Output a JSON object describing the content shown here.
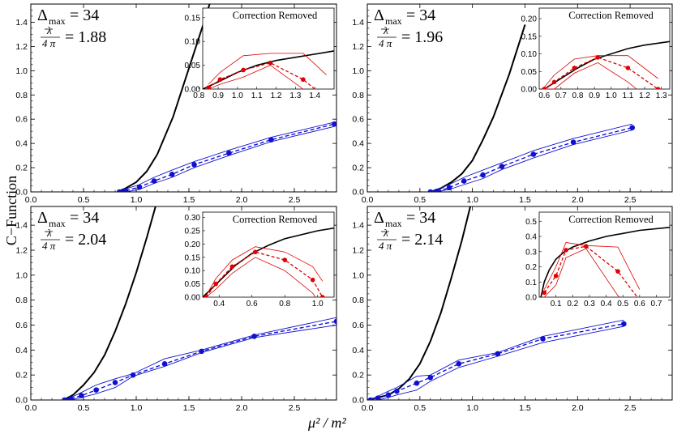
{
  "figure": {
    "ylabel": "C−Function",
    "xlabel": "μ² / m²",
    "colors": {
      "main": "#1010d0",
      "exact": "#000000",
      "inset": "#e00000"
    }
  },
  "chart_data": [
    {
      "type": "line",
      "delta_label": "Δmax = 34",
      "lambda_text": "= 1.88",
      "xlim": [
        0,
        2.9
      ],
      "ylim": [
        0,
        1.55
      ],
      "xticks": [
        "0.0",
        "0.5",
        "1.0",
        "1.5",
        "2.0",
        "2.5"
      ],
      "yticks": [
        "0.0",
        "0.2",
        "0.4",
        "0.6",
        "0.8",
        "1.0",
        "1.2",
        "1.4"
      ],
      "exact_curve": {
        "x": [
          0.82,
          0.9,
          1.0,
          1.1,
          1.2,
          1.35,
          1.5,
          1.65,
          1.75
        ],
        "y": [
          0.0,
          0.03,
          0.08,
          0.17,
          0.31,
          0.62,
          1.02,
          1.42,
          1.7
        ]
      },
      "main_points": {
        "x": [
          0.84,
          0.9,
          1.03,
          1.17,
          1.34,
          1.55,
          1.88,
          2.28,
          2.88
        ],
        "y": [
          0.0,
          0.01,
          0.04,
          0.09,
          0.145,
          0.225,
          0.32,
          0.43,
          0.56
        ]
      },
      "main_band": {
        "upper": [
          0.0,
          0.025,
          0.06,
          0.12,
          0.18,
          0.25,
          0.345,
          0.45,
          0.575
        ],
        "lower": [
          0.0,
          0.0,
          0.02,
          0.07,
          0.12,
          0.2,
          0.3,
          0.415,
          0.54
        ]
      },
      "inset": {
        "title": "Correction Removed",
        "xlim": [
          0.82,
          1.5
        ],
        "ylim": [
          0,
          0.17
        ],
        "xticks": [
          "0.8",
          "0.9",
          "1.0",
          "1.1",
          "1.2",
          "1.3",
          "1.4"
        ],
        "yticks": [
          "0.00",
          "0.05",
          "0.10",
          "0.15"
        ],
        "points": {
          "x": [
            0.85,
            0.91,
            1.03,
            1.17,
            1.34,
            1.46
          ],
          "y": [
            0.003,
            0.02,
            0.04,
            0.055,
            0.02,
            -0.02
          ]
        },
        "band_upper": [
          0.01,
          0.035,
          0.07,
          0.075,
          0.075,
          0.03
        ],
        "band_lower": [
          0.0,
          0.01,
          0.025,
          0.05,
          0.0,
          -0.05
        ],
        "exact": {
          "x": [
            0.82,
            0.9,
            1.0,
            1.1,
            1.2,
            1.35,
            1.5
          ],
          "y": [
            0.0,
            0.015,
            0.035,
            0.05,
            0.06,
            0.07,
            0.08
          ]
        }
      }
    },
    {
      "type": "line",
      "delta_label": "Δmax = 34",
      "lambda_text": "= 1.96",
      "xlim": [
        0,
        2.9
      ],
      "ylim": [
        0,
        1.55
      ],
      "xticks": [
        "0.0",
        "0.5",
        "1.0",
        "1.5",
        "2.0",
        "2.5"
      ],
      "yticks": [
        "0.0",
        "0.2",
        "0.4",
        "0.6",
        "0.8",
        "1.0",
        "1.2",
        "1.4"
      ],
      "exact_curve": {
        "x": [
          0.6,
          0.7,
          0.8,
          0.9,
          1.0,
          1.1,
          1.2,
          1.35,
          1.5
        ],
        "y": [
          0.0,
          0.03,
          0.08,
          0.15,
          0.26,
          0.43,
          0.62,
          0.97,
          1.38
        ]
      },
      "main_points": {
        "x": [
          0.6,
          0.66,
          0.78,
          0.92,
          1.1,
          1.28,
          1.58,
          1.96,
          2.52
        ],
        "y": [
          0.0,
          0.005,
          0.035,
          0.09,
          0.14,
          0.21,
          0.31,
          0.41,
          0.53
        ]
      },
      "main_band": {
        "upper": [
          0.0,
          0.02,
          0.06,
          0.12,
          0.18,
          0.24,
          0.34,
          0.44,
          0.56
        ],
        "lower": [
          0.0,
          0.0,
          0.02,
          0.06,
          0.11,
          0.185,
          0.28,
          0.39,
          0.51
        ]
      },
      "inset": {
        "title": "Correction Removed",
        "xlim": [
          0.57,
          1.35
        ],
        "ylim": [
          0,
          0.23
        ],
        "xticks": [
          "0.6",
          "0.7",
          "0.8",
          "0.9",
          "1.0",
          "1.1",
          "1.2",
          "1.3"
        ],
        "yticks": [
          "0.00",
          "0.05",
          "0.10",
          "0.15",
          "0.20"
        ],
        "points": {
          "x": [
            0.6,
            0.66,
            0.78,
            0.92,
            1.1,
            1.28
          ],
          "y": [
            0.0,
            0.02,
            0.06,
            0.09,
            0.06,
            0.0
          ]
        },
        "band_upper": [
          0.005,
          0.04,
          0.085,
          0.095,
          0.095,
          0.03
        ],
        "band_lower": [
          0.0,
          0.0,
          0.045,
          0.075,
          0.02,
          -0.05
        ],
        "exact": {
          "x": [
            0.6,
            0.7,
            0.8,
            0.9,
            1.0,
            1.1,
            1.2,
            1.35
          ],
          "y": [
            0.0,
            0.03,
            0.06,
            0.085,
            0.1,
            0.115,
            0.125,
            0.135
          ]
        }
      }
    },
    {
      "type": "line",
      "delta_label": "Δmax = 34",
      "lambda_text": "= 2.04",
      "xlim": [
        0,
        2.9
      ],
      "ylim": [
        0,
        1.55
      ],
      "xticks": [
        "0.0",
        "0.5",
        "1.0",
        "1.5",
        "2.0",
        "2.5"
      ],
      "yticks": [
        "0.0",
        "0.2",
        "0.4",
        "0.6",
        "0.8",
        "1.0",
        "1.2",
        "1.4"
      ],
      "exact_curve": {
        "x": [
          0.31,
          0.4,
          0.5,
          0.6,
          0.7,
          0.8,
          0.9,
          1.0,
          1.1,
          1.2
        ],
        "y": [
          0.0,
          0.04,
          0.12,
          0.22,
          0.36,
          0.55,
          0.77,
          1.02,
          1.3,
          1.6
        ]
      },
      "main_points": {
        "x": [
          0.32,
          0.38,
          0.48,
          0.62,
          0.8,
          0.97,
          1.27,
          1.62,
          2.12,
          2.9
        ],
        "y": [
          0.0,
          0.01,
          0.035,
          0.08,
          0.14,
          0.2,
          0.29,
          0.39,
          0.51,
          0.63
        ]
      },
      "main_band": {
        "upper": [
          0.0,
          0.02,
          0.06,
          0.12,
          0.17,
          0.21,
          0.33,
          0.4,
          0.52,
          0.66
        ],
        "lower": [
          0.0,
          0.0,
          0.02,
          0.05,
          0.1,
          0.19,
          0.27,
          0.38,
          0.5,
          0.6
        ]
      },
      "inset": {
        "title": "Correction Removed",
        "xlim": [
          0.3,
          1.1
        ],
        "ylim": [
          0,
          0.32
        ],
        "xticks": [
          "0.4",
          "0.6",
          "0.8",
          "1.0"
        ],
        "yticks": [
          "0.00",
          "0.05",
          "0.10",
          "0.15",
          "0.20",
          "0.25",
          "0.30"
        ],
        "points": {
          "x": [
            0.32,
            0.38,
            0.48,
            0.62,
            0.8,
            0.97,
            1.03
          ],
          "y": [
            0.0,
            0.05,
            0.115,
            0.17,
            0.14,
            0.065,
            0.0
          ]
        },
        "band_upper": [
          0.005,
          0.07,
          0.14,
          0.19,
          0.17,
          0.115,
          0.06
        ],
        "band_lower": [
          0.0,
          0.03,
          0.09,
          0.15,
          0.1,
          0.015,
          -0.04
        ],
        "exact": {
          "x": [
            0.3,
            0.4,
            0.5,
            0.6,
            0.7,
            0.8,
            0.9,
            1.0,
            1.1
          ],
          "y": [
            0.0,
            0.06,
            0.12,
            0.165,
            0.195,
            0.22,
            0.235,
            0.25,
            0.26
          ]
        }
      }
    },
    {
      "type": "line",
      "delta_label": "Δmax = 34",
      "lambda_text": "= 2.14",
      "xlim": [
        0,
        2.9
      ],
      "ylim": [
        0,
        1.55
      ],
      "xticks": [
        "0.0",
        "0.5",
        "1.0",
        "1.5",
        "2.0",
        "2.5"
      ],
      "yticks": [
        "0.0",
        "0.2",
        "0.4",
        "0.6",
        "0.8",
        "1.0",
        "1.2",
        "1.4"
      ],
      "exact_curve": {
        "x": [
          0.0,
          0.1,
          0.2,
          0.3,
          0.4,
          0.5,
          0.6,
          0.7,
          0.8,
          0.9,
          1.0
        ],
        "y": [
          0.0,
          0.02,
          0.04,
          0.09,
          0.17,
          0.29,
          0.47,
          0.7,
          0.98,
          1.28,
          1.62
        ]
      },
      "main_points": {
        "x": [
          0.03,
          0.1,
          0.2,
          0.28,
          0.47,
          0.6,
          0.87,
          1.24,
          1.67,
          2.44
        ],
        "y": [
          0.0,
          0.015,
          0.04,
          0.07,
          0.135,
          0.18,
          0.29,
          0.37,
          0.49,
          0.61
        ]
      },
      "main_band": {
        "upper": [
          0.0,
          0.03,
          0.07,
          0.1,
          0.19,
          0.2,
          0.32,
          0.38,
          0.51,
          0.64
        ],
        "lower": [
          0.0,
          0.0,
          0.02,
          0.04,
          0.08,
          0.15,
          0.26,
          0.35,
          0.46,
          0.59
        ]
      },
      "inset": {
        "title": "Correction Removed",
        "xlim": [
          0.0,
          0.78
        ],
        "ylim": [
          0,
          0.56
        ],
        "xticks": [
          "0.1",
          "0.2",
          "0.3",
          "0.4",
          "0.5",
          "0.6",
          "0.7"
        ],
        "yticks": [
          "0.0",
          "0.1",
          "0.2",
          "0.3",
          "0.4",
          "0.5"
        ],
        "points": {
          "x": [
            0.03,
            0.1,
            0.16,
            0.28,
            0.47,
            0.6
          ],
          "y": [
            0.03,
            0.14,
            0.31,
            0.335,
            0.17,
            -0.02
          ]
        },
        "band_upper": [
          0.05,
          0.2,
          0.36,
          0.34,
          0.33,
          0.05
        ],
        "band_lower": [
          0.0,
          0.08,
          0.26,
          0.32,
          0.01,
          -0.1
        ],
        "exact": {
          "x": [
            0.01,
            0.03,
            0.06,
            0.1,
            0.15,
            0.2,
            0.3,
            0.4,
            0.5,
            0.6,
            0.78
          ],
          "y": [
            0.0,
            0.1,
            0.18,
            0.25,
            0.3,
            0.33,
            0.37,
            0.4,
            0.42,
            0.44,
            0.46
          ]
        }
      }
    }
  ]
}
